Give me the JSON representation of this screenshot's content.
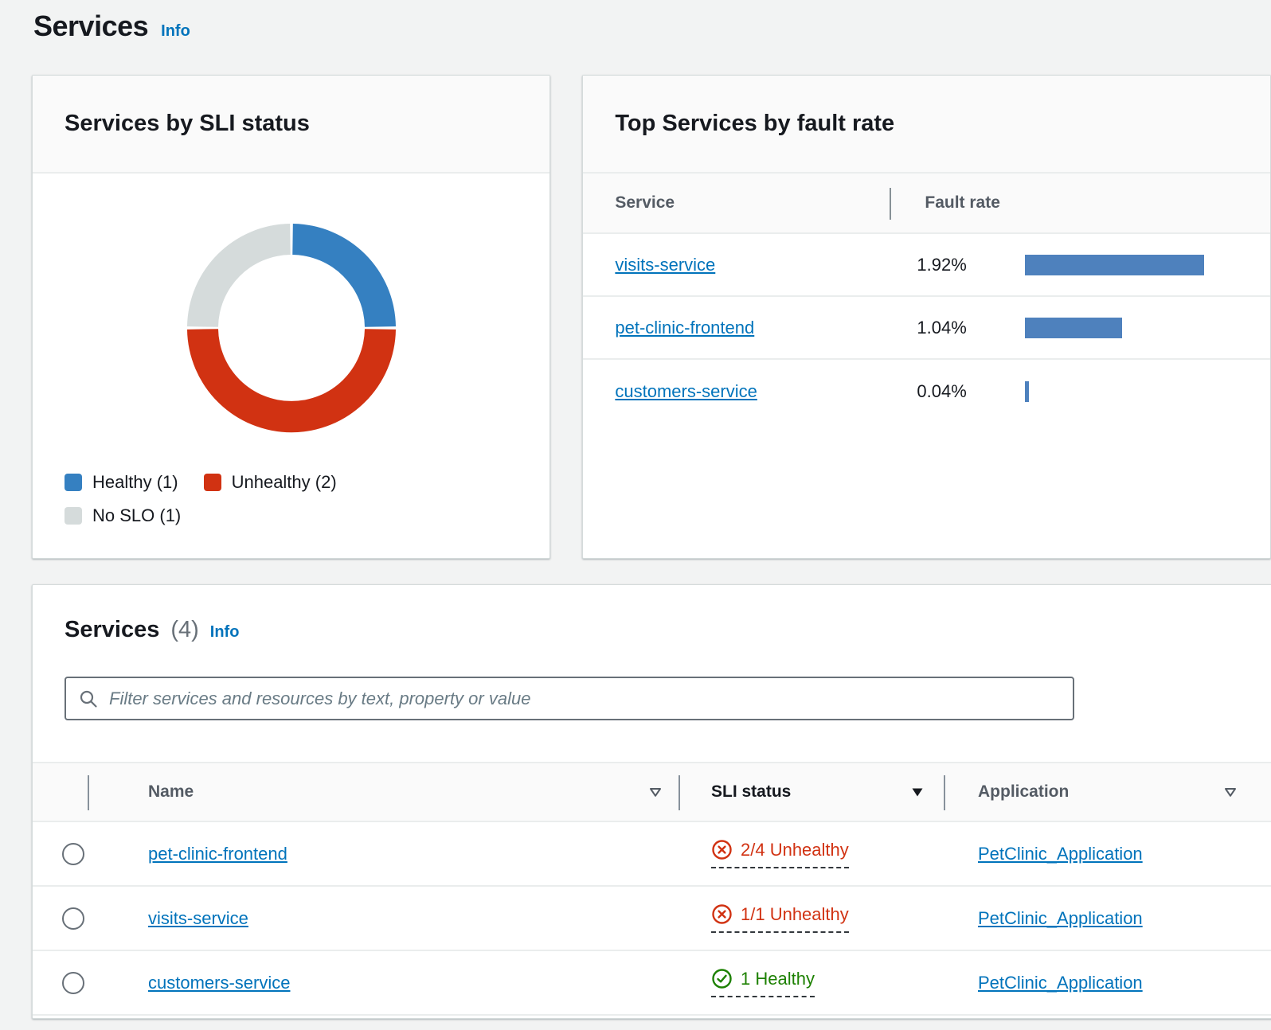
{
  "page": {
    "title": "Services",
    "info_label": "Info"
  },
  "colors": {
    "link_blue": "#0073bb",
    "error_red": "#d13212",
    "success_green": "#1d8102",
    "donut_healthy": "#3580c1",
    "donut_unhealthy": "#d13212",
    "donut_no_slo": "#d5dbdb",
    "fault_bar_blue": "#4e81bd",
    "page_background": "#f2f3f3"
  },
  "sli_card": {
    "title": "Services by SLI status",
    "legend": [
      "Healthy (1)",
      "Unhealthy (2)",
      "No SLO (1)"
    ]
  },
  "fault_card": {
    "title": "Top Services by fault rate",
    "columns": {
      "service": "Service",
      "fault_rate": "Fault rate"
    }
  },
  "services_table": {
    "title": "Services",
    "count": "(4)",
    "info_label": "Info",
    "filter_placeholder": "Filter services and resources by text, property or value",
    "columns": {
      "name": "Name",
      "sli_status": "SLI status",
      "application": "Application"
    },
    "sorted_column": "SLI status",
    "rows": [
      {
        "name": "pet-clinic-frontend",
        "sli": "2/4 Unhealthy",
        "sli_state": "unhealthy",
        "application": "PetClinic_Application"
      },
      {
        "name": "visits-service",
        "sli": "1/1 Unhealthy",
        "sli_state": "unhealthy",
        "application": "PetClinic_Application"
      },
      {
        "name": "customers-service",
        "sli": "1 Healthy",
        "sli_state": "healthy",
        "application": "PetClinic_Application"
      }
    ]
  },
  "chart_data": [
    {
      "type": "pie",
      "title": "Services by SLI status",
      "donut": true,
      "labels": [
        "Healthy",
        "Unhealthy",
        "No SLO"
      ],
      "values": [
        1,
        2,
        1
      ],
      "colors": [
        "#3580c1",
        "#d13212",
        "#d5dbdb"
      ],
      "legend": [
        "Healthy (1)",
        "Unhealthy (2)",
        "No SLO (1)"
      ],
      "start_angle_deg": 0,
      "direction": "clockwise",
      "legend_position": "bottom-left"
    },
    {
      "type": "bar",
      "title": "Top Services by fault rate",
      "orientation": "horizontal",
      "categories": [
        "visits-service",
        "pet-clinic-frontend",
        "customers-service"
      ],
      "values": [
        1.92,
        1.04,
        0.04
      ],
      "value_labels": [
        "1.92%",
        "1.04%",
        "0.04%"
      ],
      "unit": "%",
      "xlim": [
        0,
        1.92
      ],
      "bar_color": "#4e81bd",
      "grid": false,
      "legend": "none"
    }
  ]
}
